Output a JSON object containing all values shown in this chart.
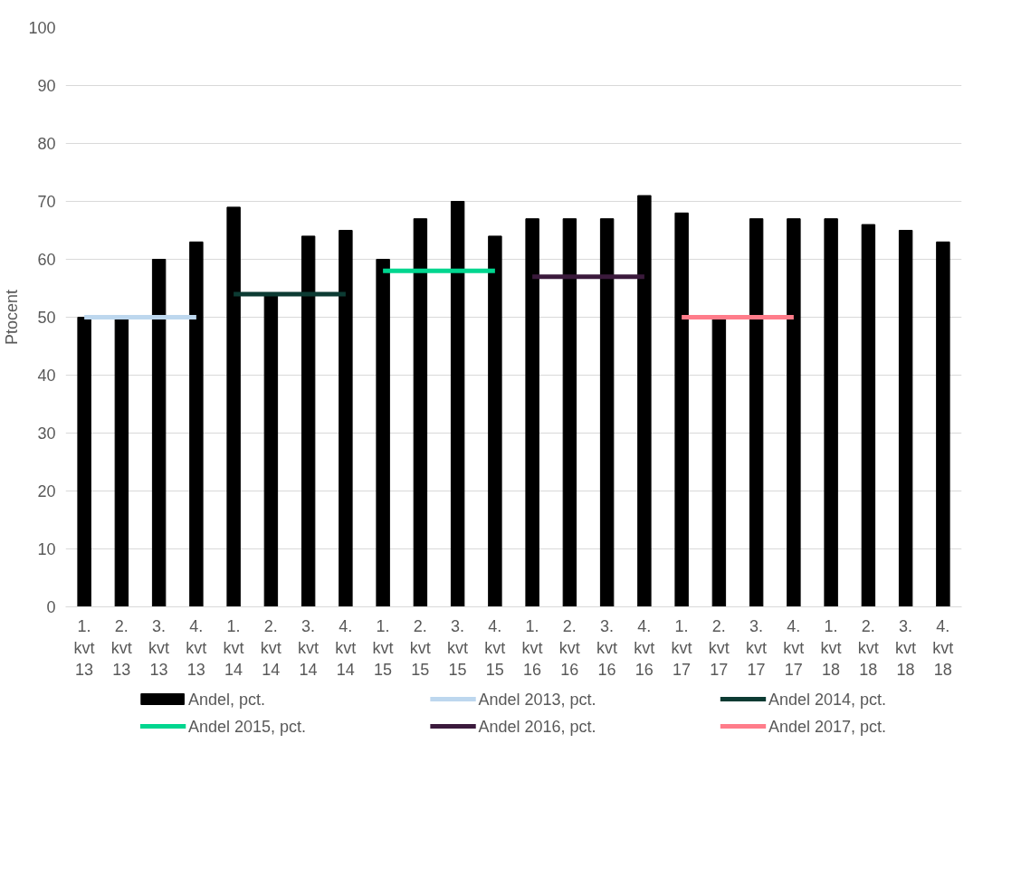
{
  "chart_data": {
    "type": "bar",
    "ylabel": "Ptocent",
    "categories": [
      "1. kvt 13",
      "2. kvt 13",
      "3. kvt 13",
      "4. kvt 13",
      "1. kvt 14",
      "2. kvt 14",
      "3. kvt 14",
      "4. kvt 14",
      "1. kvt 15",
      "2. kvt 15",
      "3. kvt 15",
      "4. kvt 15",
      "1. kvt 16",
      "2. kvt 16",
      "3. kvt 16",
      "4. kvt 16",
      "1. kvt 17",
      "2. kvt 17",
      "3. kvt 17",
      "4. kvt 17",
      "1. kvt 18",
      "2. kvt 18",
      "3. kvt 18",
      "4. kvt 18"
    ],
    "series": [
      {
        "name": "Andel, pct.",
        "color": "#000000",
        "values": [
          50,
          50,
          60,
          63,
          69,
          54,
          64,
          65,
          60,
          67,
          70,
          64,
          67,
          67,
          67,
          71,
          68,
          50,
          67,
          67,
          67,
          66,
          65,
          63
        ]
      },
      {
        "name": "Andel 2013, pct.",
        "type": "line",
        "color": "#bdd7ee",
        "x": [
          "1. kvt 13",
          "2. kvt 13",
          "3. kvt 13",
          "4. kvt 13"
        ],
        "values": [
          50,
          50,
          50,
          50
        ]
      },
      {
        "name": "Andel 2014, pct.",
        "type": "line",
        "color": "#0c3b33",
        "x": [
          "1. kvt 14",
          "2. kvt 14",
          "3. kvt 14",
          "4. kvt 14"
        ],
        "values": [
          54,
          54,
          54,
          54
        ]
      },
      {
        "name": "Andel 2015, pct.",
        "type": "line",
        "color": "#00d68f",
        "x": [
          "1. kvt 15",
          "2. kvt 15",
          "3. kvt 15",
          "4. kvt 15"
        ],
        "values": [
          58,
          58,
          58,
          58
        ]
      },
      {
        "name": "Andel 2016, pct.",
        "type": "line",
        "color": "#3b1a3c",
        "x": [
          "1. kvt 16",
          "2. kvt 16",
          "3. kvt 16",
          "4. kvt 16"
        ],
        "values": [
          57,
          57,
          57,
          57
        ]
      },
      {
        "name": "Andel 2017, pct.",
        "type": "line",
        "color": "#ff7c8a",
        "x": [
          "1. kvt 17",
          "2. kvt 17",
          "3. kvt 17",
          "4. kvt 17"
        ],
        "values": [
          50,
          50,
          50,
          50
        ]
      }
    ],
    "ylim": [
      0,
      100
    ],
    "yticks": [
      0,
      10,
      20,
      30,
      40,
      50,
      60,
      70,
      80,
      90,
      100
    ],
    "grid": "y",
    "legend": "bottom"
  }
}
